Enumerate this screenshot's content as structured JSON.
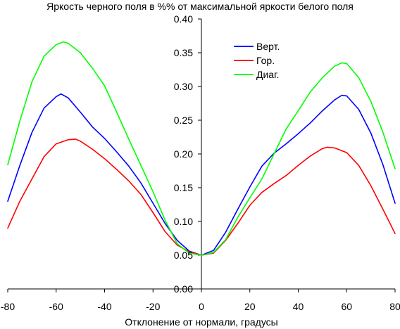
{
  "chart_data": {
    "type": "line",
    "title": "Яркость черного поля в %% от максимальной яркости белого поля",
    "xlabel": "Отклонение от нормали, градусы",
    "ylabel": "",
    "xlim": [
      -80,
      80
    ],
    "ylim": [
      0,
      0.4
    ],
    "x_ticks": [
      "-80",
      "-60",
      "-40",
      "-20",
      "0",
      "20",
      "40",
      "60",
      "80"
    ],
    "y_ticks": [
      "0.00",
      "0.05",
      "0.10",
      "0.15",
      "0.20",
      "0.25",
      "0.30",
      "0.35",
      "0.40"
    ],
    "grid": false,
    "legend_position": "top-right",
    "series": [
      {
        "name": "Верт.",
        "color": "#0000ff",
        "x": [
          -80,
          -75,
          -70,
          -65,
          -60,
          -58,
          -55,
          -50,
          -45,
          -40,
          -35,
          -30,
          -25,
          -20,
          -15,
          -10,
          -5,
          0,
          5,
          10,
          15,
          20,
          25,
          30,
          35,
          40,
          45,
          50,
          55,
          58,
          60,
          65,
          70,
          75,
          80
        ],
        "y": [
          0.13,
          0.183,
          0.232,
          0.268,
          0.285,
          0.289,
          0.283,
          0.262,
          0.24,
          0.223,
          0.203,
          0.182,
          0.157,
          0.127,
          0.097,
          0.072,
          0.056,
          0.05,
          0.057,
          0.084,
          0.118,
          0.151,
          0.182,
          0.201,
          0.215,
          0.23,
          0.246,
          0.264,
          0.28,
          0.287,
          0.286,
          0.266,
          0.231,
          0.184,
          0.127
        ]
      },
      {
        "name": "Гор.",
        "color": "#ff0000",
        "x": [
          -80,
          -75,
          -70,
          -65,
          -60,
          -55,
          -52,
          -50,
          -45,
          -40,
          -35,
          -30,
          -25,
          -20,
          -15,
          -10,
          -5,
          0,
          5,
          10,
          15,
          20,
          25,
          30,
          35,
          40,
          45,
          50,
          52,
          55,
          60,
          65,
          70,
          75,
          80
        ],
        "y": [
          0.09,
          0.13,
          0.163,
          0.196,
          0.215,
          0.221,
          0.222,
          0.219,
          0.207,
          0.193,
          0.177,
          0.16,
          0.14,
          0.113,
          0.085,
          0.065,
          0.055,
          0.05,
          0.053,
          0.072,
          0.097,
          0.124,
          0.143,
          0.156,
          0.168,
          0.183,
          0.197,
          0.208,
          0.21,
          0.209,
          0.202,
          0.183,
          0.153,
          0.118,
          0.082
        ]
      },
      {
        "name": "Диаг.",
        "color": "#00ff00",
        "x": [
          -80,
          -75,
          -70,
          -65,
          -60,
          -57,
          -55,
          -50,
          -45,
          -40,
          -35,
          -30,
          -25,
          -20,
          -15,
          -10,
          -5,
          0,
          5,
          10,
          15,
          20,
          25,
          30,
          35,
          40,
          45,
          50,
          55,
          58,
          60,
          65,
          70,
          75,
          80
        ],
        "y": [
          0.184,
          0.249,
          0.307,
          0.345,
          0.362,
          0.366,
          0.364,
          0.35,
          0.327,
          0.301,
          0.262,
          0.222,
          0.183,
          0.144,
          0.102,
          0.067,
          0.053,
          0.05,
          0.054,
          0.073,
          0.106,
          0.135,
          0.163,
          0.2,
          0.237,
          0.264,
          0.292,
          0.313,
          0.33,
          0.335,
          0.334,
          0.313,
          0.278,
          0.232,
          0.178
        ]
      }
    ]
  }
}
